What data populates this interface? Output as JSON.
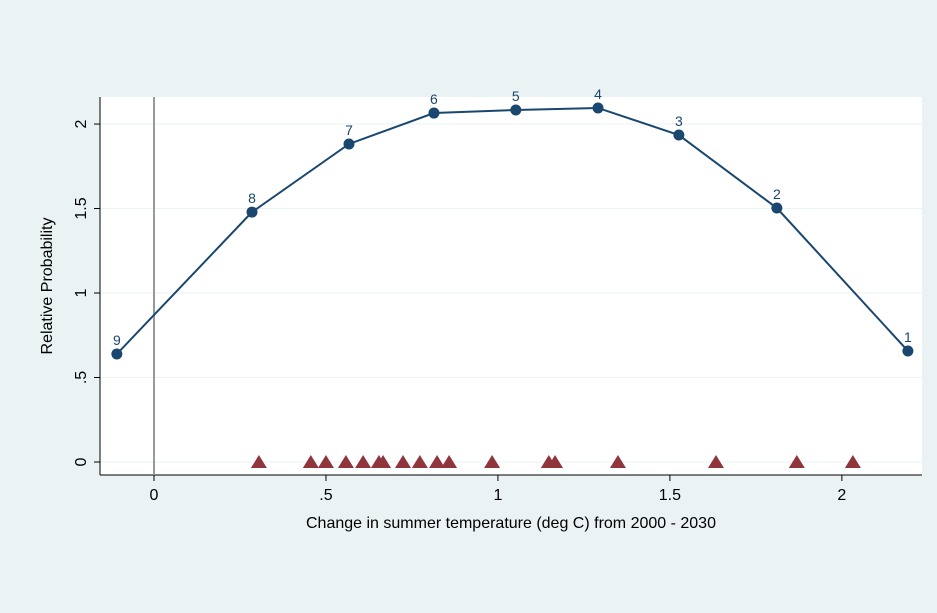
{
  "chart_data": {
    "type": "line",
    "xlabel": "Change in summer temperature (deg C) from 2000 - 2030",
    "ylabel": "Relative Probability",
    "xlim": [
      -0.157,
      2.233
    ],
    "ylim": [
      -0.077,
      2.16
    ],
    "xticks": [
      0,
      {
        "value": 0.5,
        "label": ".5"
      },
      1,
      1.5,
      2
    ],
    "yticks": [
      0,
      {
        "value": 0.5,
        "label": ".5"
      },
      1,
      1.5,
      2
    ],
    "grid": true,
    "vline": 0,
    "series": [
      {
        "color": "#1a476f",
        "marker": "circle",
        "line": true,
        "x": [
          -0.108,
          0.285,
          0.567,
          0.814,
          1.052,
          1.291,
          1.526,
          1.811,
          2.192
        ],
        "values": [
          0.639,
          1.479,
          1.882,
          2.065,
          2.083,
          2.095,
          1.935,
          1.503,
          0.657
        ],
        "point_labels": [
          "9",
          "8",
          "7",
          "6",
          "5",
          "4",
          "3",
          "2",
          "1"
        ]
      },
      {
        "color": "#90353b",
        "marker": "triangle",
        "line": false,
        "x": [
          0.305,
          0.456,
          0.5,
          0.558,
          0.608,
          0.654,
          0.666,
          0.724,
          0.773,
          0.823,
          0.858,
          0.983,
          1.148,
          1.166,
          1.349,
          1.634,
          1.869,
          2.032
        ],
        "values": [
          0,
          0,
          0,
          0,
          0,
          0,
          0,
          0,
          0,
          0,
          0,
          0,
          0,
          0,
          0,
          0,
          0,
          0
        ]
      }
    ]
  }
}
